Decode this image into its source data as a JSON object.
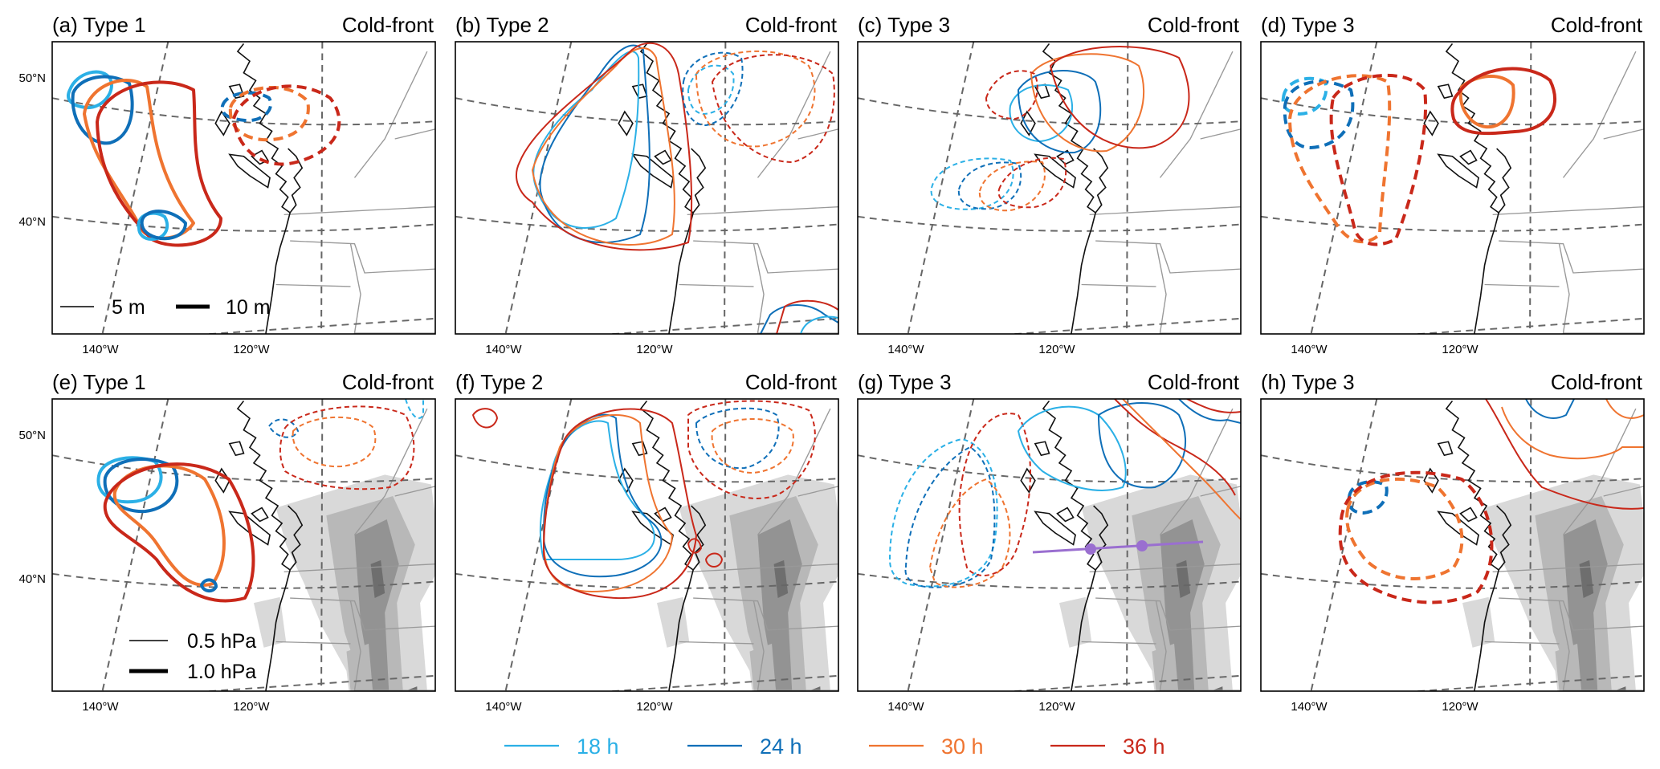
{
  "panels": [
    {
      "id": "a",
      "label": "(a) Type 1",
      "case": "Cold-front",
      "show_lat_labels": true,
      "terrain": false,
      "key": "height"
    },
    {
      "id": "b",
      "label": "(b) Type 2",
      "case": "Cold-front",
      "show_lat_labels": false,
      "terrain": false,
      "key": null
    },
    {
      "id": "c",
      "label": "(c) Type 3",
      "case": "Cold-front",
      "show_lat_labels": false,
      "terrain": false,
      "key": null
    },
    {
      "id": "d",
      "label": "(d) Type 3",
      "case": "Cold-front",
      "show_lat_labels": false,
      "terrain": false,
      "key": null
    },
    {
      "id": "e",
      "label": "(e) Type 1",
      "case": "Cold-front",
      "show_lat_labels": true,
      "terrain": true,
      "key": "pressure"
    },
    {
      "id": "f",
      "label": "(f) Type 2",
      "case": "Cold-front",
      "show_lat_labels": false,
      "terrain": true,
      "key": null
    },
    {
      "id": "g",
      "label": "(g) Type 3",
      "case": "Cold-front",
      "show_lat_labels": false,
      "terrain": true,
      "key": null,
      "cross_section": true
    },
    {
      "id": "h",
      "label": "(h) Type 3",
      "case": "Cold-front",
      "show_lat_labels": false,
      "terrain": true,
      "key": null
    }
  ],
  "axes": {
    "lon_ticks": [
      "140°W",
      "120°W"
    ],
    "lat_ticks": [
      "50°N",
      "40°N"
    ]
  },
  "line_keys": {
    "height": [
      {
        "label": "5 m",
        "weight": "thin"
      },
      {
        "label": "10 m",
        "weight": "thick"
      }
    ],
    "pressure": [
      {
        "label": "0.5 hPa",
        "weight": "thin"
      },
      {
        "label": "1.0 hPa",
        "weight": "thick"
      }
    ]
  },
  "legend": [
    {
      "label": "18 h",
      "color": "#2bb0e6"
    },
    {
      "label": "24 h",
      "color": "#0f6fb8"
    },
    {
      "label": "30 h",
      "color": "#ef7430"
    },
    {
      "label": "36 h",
      "color": "#c9281a"
    }
  ],
  "styles": {
    "terrain_colors": [
      "#d9d9d9",
      "#b8b8b8",
      "#939393",
      "#6e6e6e"
    ],
    "cross_section_color": "#9a6fd0"
  }
}
